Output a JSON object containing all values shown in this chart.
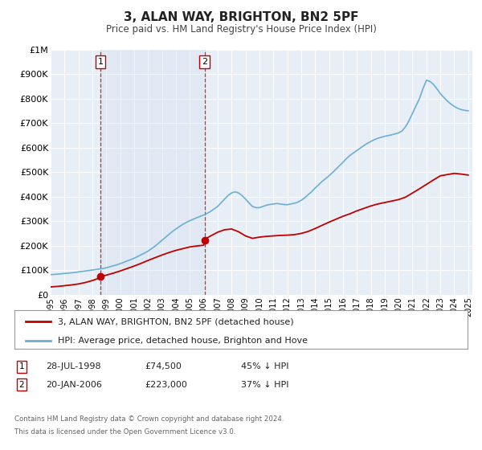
{
  "title": "3, ALAN WAY, BRIGHTON, BN2 5PF",
  "subtitle": "Price paid vs. HM Land Registry's House Price Index (HPI)",
  "background_color": "#ffffff",
  "plot_bg_color": "#e8eef5",
  "grid_color": "#ffffff",
  "ylim": [
    0,
    1000000
  ],
  "yticks": [
    0,
    100000,
    200000,
    300000,
    400000,
    500000,
    600000,
    700000,
    800000,
    900000,
    1000000
  ],
  "ytick_labels": [
    "£0",
    "£100K",
    "£200K",
    "£300K",
    "£400K",
    "£500K",
    "£600K",
    "£700K",
    "£800K",
    "£900K",
    "£1M"
  ],
  "transaction1_year": 1998.578,
  "transaction1_price": 74500,
  "transaction2_year": 2006.055,
  "transaction2_price": 223000,
  "hpi_color": "#6baed6",
  "property_color": "#c00000",
  "shade_color": "#c6d9f0",
  "legend1_label": "3, ALAN WAY, BRIGHTON, BN2 5PF (detached house)",
  "legend2_label": "HPI: Average price, detached house, Brighton and Hove",
  "table_row1": [
    "1",
    "28-JUL-1998",
    "£74,500",
    "45% ↓ HPI"
  ],
  "table_row2": [
    "2",
    "20-JAN-2006",
    "£223,000",
    "37% ↓ HPI"
  ],
  "footer1": "Contains HM Land Registry data © Crown copyright and database right 2024.",
  "footer2": "This data is licensed under the Open Government Licence v3.0.",
  "hpi_x": [
    1995.0,
    1995.25,
    1995.5,
    1995.75,
    1996.0,
    1996.25,
    1996.5,
    1996.75,
    1997.0,
    1997.25,
    1997.5,
    1997.75,
    1998.0,
    1998.25,
    1998.5,
    1998.75,
    1999.0,
    1999.25,
    1999.5,
    1999.75,
    2000.0,
    2000.25,
    2000.5,
    2000.75,
    2001.0,
    2001.25,
    2001.5,
    2001.75,
    2002.0,
    2002.25,
    2002.5,
    2002.75,
    2003.0,
    2003.25,
    2003.5,
    2003.75,
    2004.0,
    2004.25,
    2004.5,
    2004.75,
    2005.0,
    2005.25,
    2005.5,
    2005.75,
    2006.0,
    2006.25,
    2006.5,
    2006.75,
    2007.0,
    2007.25,
    2007.5,
    2007.75,
    2008.0,
    2008.25,
    2008.5,
    2008.75,
    2009.0,
    2009.25,
    2009.5,
    2009.75,
    2010.0,
    2010.25,
    2010.5,
    2010.75,
    2011.0,
    2011.25,
    2011.5,
    2011.75,
    2012.0,
    2012.25,
    2012.5,
    2012.75,
    2013.0,
    2013.25,
    2013.5,
    2013.75,
    2014.0,
    2014.25,
    2014.5,
    2014.75,
    2015.0,
    2015.25,
    2015.5,
    2015.75,
    2016.0,
    2016.25,
    2016.5,
    2016.75,
    2017.0,
    2017.25,
    2017.5,
    2017.75,
    2018.0,
    2018.25,
    2018.5,
    2018.75,
    2019.0,
    2019.25,
    2019.5,
    2019.75,
    2020.0,
    2020.25,
    2020.5,
    2020.75,
    2021.0,
    2021.25,
    2021.5,
    2021.75,
    2022.0,
    2022.25,
    2022.5,
    2022.75,
    2023.0,
    2023.25,
    2023.5,
    2023.75,
    2024.0,
    2024.25,
    2024.5,
    2024.75,
    2025.0
  ],
  "hpi_y": [
    82000,
    83000,
    84000,
    85500,
    87000,
    88000,
    89500,
    91000,
    93000,
    95000,
    97000,
    99000,
    101000,
    103000,
    105000,
    107000,
    110000,
    114000,
    118000,
    122000,
    127000,
    132000,
    138000,
    143000,
    149000,
    156000,
    163000,
    170000,
    178000,
    188000,
    198000,
    210000,
    222000,
    234000,
    246000,
    258000,
    268000,
    278000,
    287000,
    295000,
    302000,
    308000,
    314000,
    320000,
    325000,
    332000,
    340000,
    350000,
    360000,
    375000,
    390000,
    405000,
    415000,
    420000,
    415000,
    405000,
    390000,
    375000,
    360000,
    355000,
    355000,
    360000,
    365000,
    368000,
    370000,
    372000,
    370000,
    368000,
    367000,
    370000,
    373000,
    377000,
    385000,
    395000,
    408000,
    420000,
    435000,
    448000,
    462000,
    473000,
    485000,
    498000,
    512000,
    526000,
    540000,
    555000,
    568000,
    578000,
    588000,
    598000,
    608000,
    617000,
    625000,
    632000,
    638000,
    642000,
    646000,
    649000,
    652000,
    656000,
    660000,
    668000,
    685000,
    710000,
    740000,
    770000,
    800000,
    840000,
    875000,
    870000,
    858000,
    840000,
    820000,
    805000,
    790000,
    778000,
    768000,
    760000,
    755000,
    752000,
    750000
  ],
  "prop_x": [
    1995.0,
    1995.5,
    1996.0,
    1996.5,
    1997.0,
    1997.5,
    1997.75,
    1998.0,
    1998.25,
    1998.5,
    1998.578,
    1998.75,
    1999.0,
    1999.5,
    2000.0,
    2000.5,
    2001.0,
    2001.5,
    2002.0,
    2002.5,
    2003.0,
    2003.5,
    2004.0,
    2004.5,
    2005.0,
    2005.5,
    2006.0,
    2006.055,
    2006.25,
    2006.5,
    2007.0,
    2007.5,
    2008.0,
    2008.5,
    2009.0,
    2009.5,
    2010.0,
    2010.5,
    2011.0,
    2011.5,
    2012.0,
    2012.5,
    2013.0,
    2013.5,
    2014.0,
    2014.5,
    2015.0,
    2015.5,
    2016.0,
    2016.5,
    2017.0,
    2017.5,
    2018.0,
    2018.5,
    2019.0,
    2019.5,
    2020.0,
    2020.5,
    2021.0,
    2021.5,
    2022.0,
    2022.5,
    2023.0,
    2023.5,
    2024.0,
    2024.5,
    2025.0
  ],
  "prop_y": [
    32000,
    34000,
    37000,
    40000,
    44000,
    50000,
    54000,
    58000,
    63000,
    68000,
    74500,
    76000,
    80000,
    88000,
    97000,
    107000,
    117000,
    128000,
    140000,
    151000,
    162000,
    172000,
    181000,
    188000,
    195000,
    199000,
    202000,
    223000,
    232000,
    240000,
    255000,
    265000,
    268000,
    257000,
    240000,
    230000,
    235000,
    238000,
    240000,
    242000,
    243000,
    245000,
    250000,
    258000,
    270000,
    283000,
    296000,
    308000,
    320000,
    330000,
    342000,
    352000,
    362000,
    370000,
    376000,
    382000,
    388000,
    398000,
    415000,
    432000,
    450000,
    468000,
    485000,
    490000,
    495000,
    492000,
    488000
  ]
}
